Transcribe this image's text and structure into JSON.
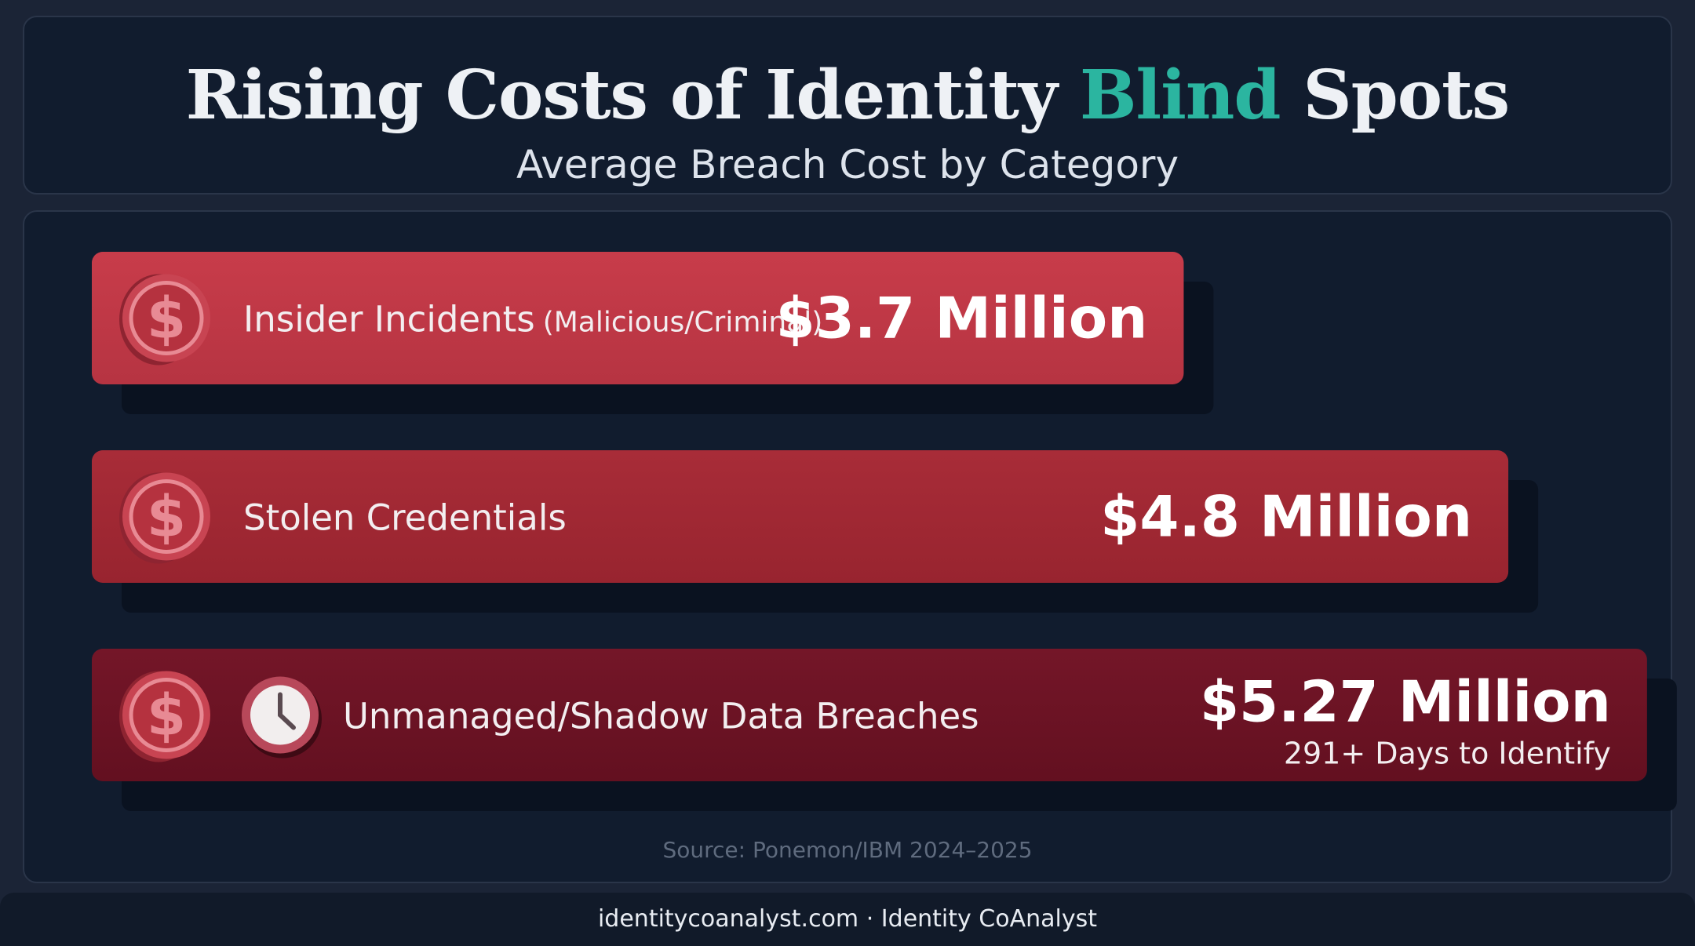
{
  "header": {
    "title_before": "Rising Costs of Identity ",
    "title_accent": "Blind",
    "title_after": " Spots",
    "subtitle": "Average Breach Cost by Category"
  },
  "colors": {
    "accent": "#2bb5a0",
    "bar_1": "#c13a48",
    "bar_2": "#a32a36",
    "bar_3": "#6e1425"
  },
  "chart_data": {
    "type": "bar",
    "orientation": "horizontal",
    "unit": "Million",
    "categories": [
      "Insider Incidents (Malicious/Criminal)",
      "Stolen Credentials",
      "Unmanaged/Shadow Data Breaches"
    ],
    "values": [
      3.7,
      4.8,
      5.27
    ],
    "bars": [
      {
        "label_main": "Insider Incidents",
        "label_sub": "(Malicious/Criminal)",
        "value": 3.7,
        "value_label": "$3.7 Million",
        "note": "",
        "icons": [
          "dollar-coin-icon"
        ]
      },
      {
        "label_main": "Stolen Credentials",
        "label_sub": "",
        "value": 4.8,
        "value_label": "$4.8 Million",
        "note": "",
        "icons": [
          "dollar-coin-icon"
        ]
      },
      {
        "label_main": "Unmanaged/Shadow Data Breaches",
        "label_sub": "",
        "value": 5.27,
        "value_label": "$5.27 Million",
        "note": "291+ Days to Identify",
        "icons": [
          "dollar-coin-icon",
          "clock-icon"
        ]
      }
    ]
  },
  "source": "Source: Ponemon/IBM 2024–2025",
  "footer": {
    "site": "identitycoanalyst.com",
    "separator": "·",
    "brand": "Identity CoAnalyst"
  }
}
